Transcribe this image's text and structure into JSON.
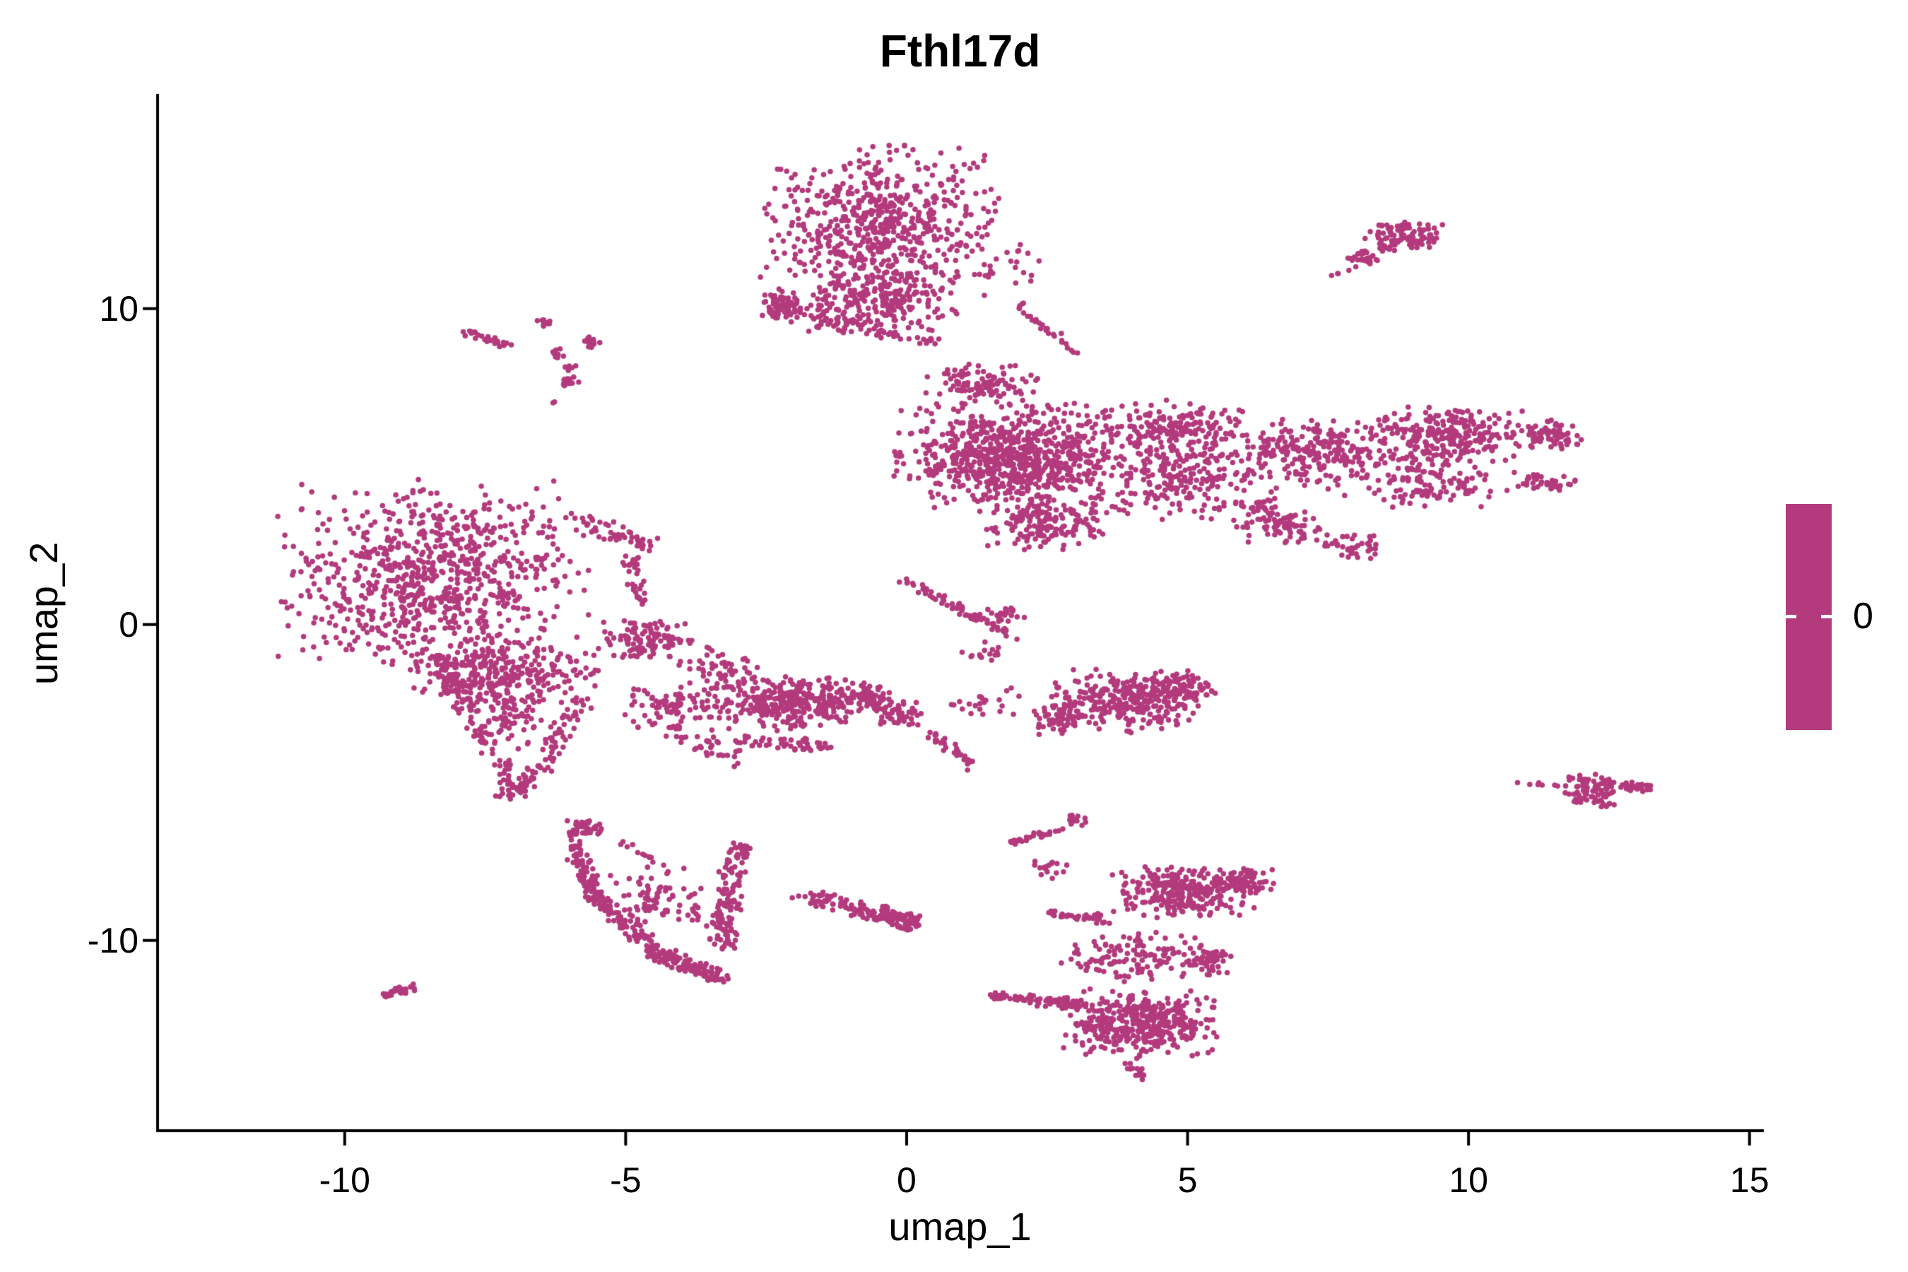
{
  "figure": {
    "title": "Fthl17d",
    "x_axis": {
      "label": "umap_1",
      "ticks": [
        "-10",
        "-5",
        "0",
        "5",
        "10",
        "15"
      ]
    },
    "y_axis": {
      "label": "umap_2",
      "ticks": [
        "10",
        "0",
        "-10"
      ]
    },
    "legend": {
      "label": "0",
      "bar_color": "#B33A7C"
    }
  },
  "chart_data": {
    "type": "scatter",
    "title": "Fthl17d",
    "xlabel": "umap_1",
    "ylabel": "umap_2",
    "xlim": [
      -13.33,
      15.23
    ],
    "ylim": [
      -16.02,
      16.75
    ],
    "x_ticks": [
      -10,
      -5,
      0,
      5,
      10,
      15
    ],
    "y_ticks": [
      10,
      0,
      -10
    ],
    "grid": false,
    "legend_position": "right",
    "expression_value_shown": 0,
    "point_color": "#B33A7C",
    "point_radius_px": 3.8,
    "axis_color": "#000000",
    "clusters": [
      {
        "name": "top-center",
        "blobs": [
          {
            "kind": "gauss",
            "x": -0.48,
            "y": 12.6,
            "rx": 2.0,
            "ry": 2.4,
            "n": 620
          },
          {
            "kind": "gauss",
            "x": -0.4,
            "y": 10.2,
            "rx": 1.3,
            "ry": 0.9,
            "n": 200
          },
          {
            "kind": "gauss",
            "x": -2.24,
            "y": 10.1,
            "rx": 0.35,
            "ry": 0.55,
            "n": 80
          },
          {
            "kind": "line",
            "x1": -2.1,
            "y1": 10.0,
            "x2": -0.6,
            "y2": 9.5,
            "w": 0.25,
            "n": 35
          },
          {
            "kind": "line",
            "x1": -1.67,
            "y1": 9.55,
            "x2": 0.84,
            "y2": 8.9,
            "w": 0.2,
            "n": 40
          },
          {
            "kind": "line",
            "x1": 1.97,
            "y1": 10.16,
            "x2": 3.11,
            "y2": 8.48,
            "w": 0.12,
            "n": 28
          },
          {
            "kind": "gauss",
            "x": 1.9,
            "y": 11.3,
            "rx": 0.5,
            "ry": 0.8,
            "n": 15
          }
        ]
      },
      {
        "name": "top-right-small",
        "blobs": [
          {
            "kind": "gauss",
            "x": 8.85,
            "y": 12.25,
            "rx": 0.72,
            "ry": 0.5,
            "n": 100
          },
          {
            "kind": "gauss",
            "x": 8.15,
            "y": 11.62,
            "rx": 0.3,
            "ry": 0.35,
            "n": 26
          },
          {
            "kind": "gauss",
            "x": 7.8,
            "y": 11.1,
            "rx": 0.3,
            "ry": 0.3,
            "n": 4
          }
        ]
      },
      {
        "name": "right-band",
        "blobs": [
          {
            "kind": "gauss",
            "x": 1.9,
            "y": 5.3,
            "rx": 2.0,
            "ry": 1.6,
            "n": 780
          },
          {
            "kind": "gauss",
            "x": 1.3,
            "y": 7.6,
            "rx": 1.0,
            "ry": 0.6,
            "n": 110
          },
          {
            "kind": "gauss",
            "x": 2.5,
            "y": 3.2,
            "rx": 1.0,
            "ry": 0.8,
            "n": 160
          },
          {
            "kind": "gauss",
            "x": 4.7,
            "y": 6.1,
            "rx": 1.2,
            "ry": 0.95,
            "n": 170
          },
          {
            "kind": "gauss",
            "x": 5.1,
            "y": 4.5,
            "rx": 1.4,
            "ry": 1.1,
            "n": 170
          },
          {
            "kind": "gauss",
            "x": 7.4,
            "y": 5.5,
            "rx": 1.3,
            "ry": 1.0,
            "n": 200
          },
          {
            "kind": "gauss",
            "x": 9.6,
            "y": 6.0,
            "rx": 1.3,
            "ry": 0.85,
            "n": 240
          },
          {
            "kind": "gauss",
            "x": 9.4,
            "y": 4.6,
            "rx": 1.2,
            "ry": 0.85,
            "n": 130
          },
          {
            "kind": "gauss",
            "x": 11.4,
            "y": 6.0,
            "rx": 0.6,
            "ry": 0.5,
            "n": 80
          },
          {
            "kind": "line",
            "x1": 10.9,
            "y1": 4.6,
            "x2": 11.8,
            "y2": 4.4,
            "w": 0.25,
            "n": 45
          },
          {
            "kind": "gauss",
            "x": 6.6,
            "y": 3.1,
            "rx": 0.75,
            "ry": 0.6,
            "n": 60
          },
          {
            "kind": "gauss",
            "x": 7.9,
            "y": 2.5,
            "rx": 0.5,
            "ry": 0.45,
            "n": 40
          },
          {
            "kind": "line",
            "x1": 6.2,
            "y1": 3.9,
            "x2": 7.2,
            "y2": 2.7,
            "w": 0.15,
            "n": 30
          },
          {
            "kind": "gauss",
            "x": 6.0,
            "y": 5.3,
            "rx": 2.6,
            "ry": 1.7,
            "n": 110
          }
        ]
      },
      {
        "name": "left-large",
        "blobs": [
          {
            "kind": "gauss",
            "x": -8.4,
            "y": 1.5,
            "rx": 2.6,
            "ry": 2.9,
            "n": 820
          },
          {
            "kind": "line",
            "x1": -5.9,
            "y1": 3.3,
            "x2": -4.6,
            "y2": 2.5,
            "w": 0.3,
            "n": 50
          },
          {
            "kind": "line",
            "x1": -4.9,
            "y1": 2.2,
            "x2": -4.75,
            "y2": 0.7,
            "w": 0.18,
            "n": 35
          },
          {
            "kind": "gauss",
            "x": -4.6,
            "y": -0.5,
            "rx": 0.75,
            "ry": 0.6,
            "n": 110
          },
          {
            "kind": "gauss",
            "x": -7.2,
            "y": -1.6,
            "rx": 1.6,
            "ry": 1.1,
            "n": 300
          },
          {
            "kind": "line",
            "x1": -8.4,
            "y1": -0.9,
            "x2": -7.1,
            "y2": -4.7,
            "w": 0.22,
            "n": 80
          },
          {
            "kind": "line",
            "x1": -5.75,
            "y1": -2.4,
            "x2": -6.8,
            "y2": -5.3,
            "w": 0.22,
            "n": 70
          },
          {
            "kind": "gauss",
            "x": -6.95,
            "y": -5.1,
            "rx": 0.35,
            "ry": 0.4,
            "n": 40
          },
          {
            "kind": "gauss",
            "x": -7.1,
            "y": -3.0,
            "rx": 0.9,
            "ry": 0.9,
            "n": 70
          },
          {
            "kind": "gauss",
            "x": -4.2,
            "y": -2.6,
            "rx": 0.9,
            "ry": 0.75,
            "n": 80
          },
          {
            "kind": "line",
            "x1": -4.2,
            "y1": -3.3,
            "x2": -3.0,
            "y2": -4.3,
            "w": 0.3,
            "n": 40
          }
        ]
      },
      {
        "name": "middle-band",
        "blobs": [
          {
            "kind": "gauss",
            "x": -3.3,
            "y": -1.4,
            "rx": 0.8,
            "ry": 0.8,
            "n": 60
          },
          {
            "kind": "gauss",
            "x": -2.0,
            "y": -2.5,
            "rx": 1.5,
            "ry": 0.8,
            "n": 340
          },
          {
            "kind": "line",
            "x1": -3.2,
            "y1": -3.6,
            "x2": -1.2,
            "y2": -3.9,
            "w": 0.2,
            "n": 50
          },
          {
            "kind": "gauss",
            "x": -0.65,
            "y": -2.3,
            "rx": 0.5,
            "ry": 0.45,
            "n": 55
          },
          {
            "kind": "gauss",
            "x": -0.1,
            "y": -2.85,
            "rx": 0.45,
            "ry": 0.4,
            "n": 45
          },
          {
            "kind": "line",
            "x1": 0.3,
            "y1": -3.3,
            "x2": 1.2,
            "y2": -4.5,
            "w": 0.15,
            "n": 30
          },
          {
            "kind": "line",
            "x1": 0.0,
            "y1": 1.4,
            "x2": 2.0,
            "y2": -0.5,
            "w": 0.13,
            "n": 70
          },
          {
            "kind": "gauss",
            "x": 1.75,
            "y": 0.3,
            "rx": 0.35,
            "ry": 0.25,
            "n": 22
          },
          {
            "kind": "gauss",
            "x": 1.35,
            "y": -0.9,
            "rx": 0.4,
            "ry": 0.5,
            "n": 15
          },
          {
            "kind": "gauss",
            "x": 1.4,
            "y": -2.5,
            "rx": 0.8,
            "ry": 0.5,
            "n": 22
          },
          {
            "kind": "gauss",
            "x": 3.9,
            "y": -2.4,
            "rx": 1.25,
            "ry": 1.0,
            "n": 300
          },
          {
            "kind": "gauss",
            "x": 5.0,
            "y": -2.0,
            "rx": 0.6,
            "ry": 0.45,
            "n": 60
          },
          {
            "kind": "gauss",
            "x": 2.7,
            "y": -3.0,
            "rx": 0.6,
            "ry": 0.5,
            "n": 50
          }
        ]
      },
      {
        "name": "bottom-left-hook",
        "blobs": [
          {
            "kind": "gauss",
            "x": -5.75,
            "y": -6.5,
            "rx": 0.3,
            "ry": 0.35,
            "n": 45
          },
          {
            "kind": "line",
            "x1": -5.95,
            "y1": -7.0,
            "x2": -5.55,
            "y2": -8.6,
            "w": 0.2,
            "n": 70
          },
          {
            "kind": "line",
            "x1": -5.55,
            "y1": -8.6,
            "x2": -4.6,
            "y2": -10.1,
            "w": 0.22,
            "n": 80
          },
          {
            "kind": "line",
            "x1": -4.6,
            "y1": -10.3,
            "x2": -3.3,
            "y2": -11.2,
            "w": 0.25,
            "n": 130
          },
          {
            "kind": "line",
            "x1": -3.1,
            "y1": -7.5,
            "x2": -3.3,
            "y2": -10.2,
            "w": 0.25,
            "n": 110
          },
          {
            "kind": "gauss",
            "x": -2.95,
            "y": -7.15,
            "rx": 0.25,
            "ry": 0.3,
            "n": 25
          },
          {
            "kind": "gauss",
            "x": -4.5,
            "y": -8.8,
            "rx": 1.1,
            "ry": 1.1,
            "n": 80
          },
          {
            "kind": "line",
            "x1": -5.0,
            "y1": -6.9,
            "x2": -4.2,
            "y2": -7.9,
            "w": 0.12,
            "n": 14
          }
        ]
      },
      {
        "name": "bottom-center-strip",
        "blobs": [
          {
            "kind": "line",
            "x1": -1.85,
            "y1": -8.55,
            "x2": -0.7,
            "y2": -9.1,
            "w": 0.25,
            "n": 55
          },
          {
            "kind": "line",
            "x1": -0.7,
            "y1": -9.1,
            "x2": 0.15,
            "y2": -9.5,
            "w": 0.3,
            "n": 95
          }
        ]
      },
      {
        "name": "bottom-right",
        "blobs": [
          {
            "kind": "line",
            "x1": 1.8,
            "y1": -6.9,
            "x2": 2.75,
            "y2": -6.5,
            "w": 0.12,
            "n": 30
          },
          {
            "kind": "gauss",
            "x": 3.0,
            "y": -6.2,
            "rx": 0.22,
            "ry": 0.18,
            "n": 14
          },
          {
            "kind": "gauss",
            "x": 2.55,
            "y": -7.8,
            "rx": 0.35,
            "ry": 0.5,
            "n": 16
          },
          {
            "kind": "gauss",
            "x": 5.0,
            "y": -8.5,
            "rx": 1.25,
            "ry": 0.8,
            "n": 270
          },
          {
            "kind": "gauss",
            "x": 6.0,
            "y": -8.1,
            "rx": 0.5,
            "ry": 0.4,
            "n": 70
          },
          {
            "kind": "line",
            "x1": 2.5,
            "y1": -9.15,
            "x2": 3.6,
            "y2": -9.35,
            "w": 0.15,
            "n": 40
          },
          {
            "kind": "gauss",
            "x": 4.1,
            "y": -10.5,
            "rx": 1.3,
            "ry": 0.8,
            "n": 120
          },
          {
            "kind": "gauss",
            "x": 5.35,
            "y": -10.6,
            "rx": 0.45,
            "ry": 0.5,
            "n": 55
          },
          {
            "kind": "line",
            "x1": 1.5,
            "y1": -11.75,
            "x2": 3.2,
            "y2": -12.05,
            "w": 0.18,
            "n": 75
          },
          {
            "kind": "gauss",
            "x": 4.15,
            "y": -12.6,
            "rx": 1.3,
            "ry": 1.0,
            "n": 400
          },
          {
            "kind": "line",
            "x1": 3.95,
            "y1": -13.8,
            "x2": 4.3,
            "y2": -14.5,
            "w": 0.15,
            "n": 15
          }
        ]
      },
      {
        "name": "tiny-bottom-left",
        "blobs": [
          {
            "kind": "line",
            "x1": -9.3,
            "y1": -11.75,
            "x2": -8.75,
            "y2": -11.45,
            "w": 0.12,
            "n": 30
          }
        ]
      },
      {
        "name": "right-small",
        "blobs": [
          {
            "kind": "gauss",
            "x": 12.15,
            "y": -5.25,
            "rx": 0.45,
            "ry": 0.5,
            "n": 90
          },
          {
            "kind": "line",
            "x1": 12.5,
            "y1": -5.0,
            "x2": 13.25,
            "y2": -5.2,
            "w": 0.18,
            "n": 35
          },
          {
            "kind": "line",
            "x1": 10.75,
            "y1": -5.0,
            "x2": 11.6,
            "y2": -5.1,
            "w": 0.06,
            "n": 9
          }
        ]
      },
      {
        "name": "top-left-fragments",
        "blobs": [
          {
            "kind": "line",
            "x1": -7.85,
            "y1": 9.25,
            "x2": -7.05,
            "y2": 8.82,
            "w": 0.12,
            "n": 26
          },
          {
            "kind": "gauss",
            "x": -6.45,
            "y": 9.55,
            "rx": 0.18,
            "ry": 0.15,
            "n": 12
          },
          {
            "kind": "gauss",
            "x": -5.62,
            "y": 8.95,
            "rx": 0.2,
            "ry": 0.18,
            "n": 14
          },
          {
            "kind": "gauss",
            "x": -6.18,
            "y": 8.6,
            "rx": 0.18,
            "ry": 0.15,
            "n": 11
          },
          {
            "kind": "gauss",
            "x": -5.95,
            "y": 8.15,
            "rx": 0.15,
            "ry": 0.15,
            "n": 5
          },
          {
            "kind": "gauss",
            "x": -6.05,
            "y": 7.7,
            "rx": 0.2,
            "ry": 0.2,
            "n": 13
          },
          {
            "kind": "gauss",
            "x": -6.3,
            "y": 7.05,
            "rx": 0.05,
            "ry": 0.05,
            "n": 2
          }
        ]
      }
    ]
  }
}
